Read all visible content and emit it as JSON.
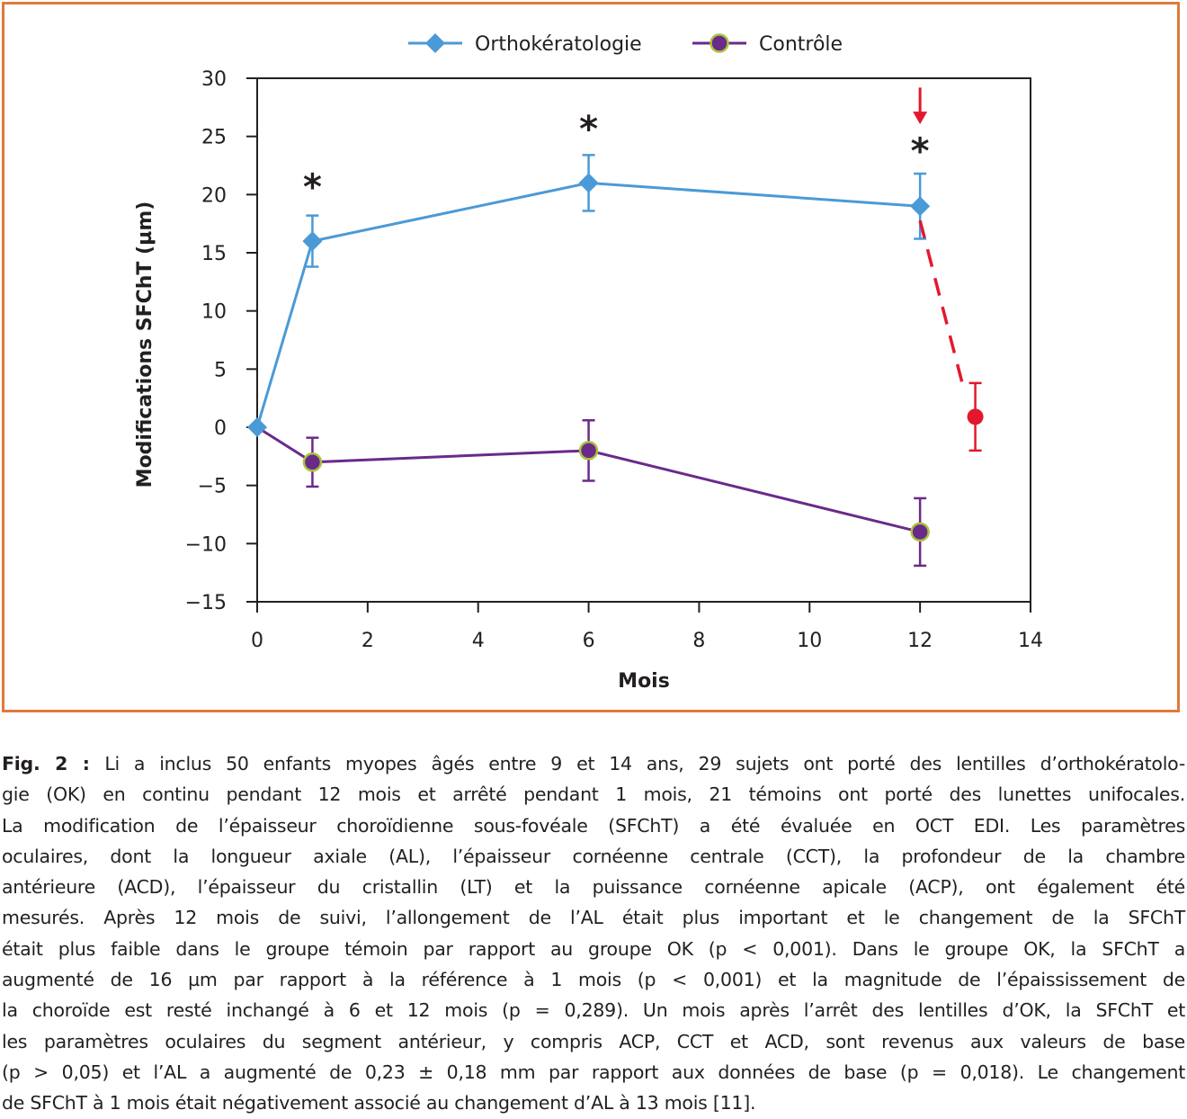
{
  "chart_data": {
    "type": "line",
    "xlabel": "Mois",
    "ylabel": "Modifications SFChT (µm)",
    "xlim": [
      0,
      14
    ],
    "ylim": [
      -15,
      30
    ],
    "x_ticks": [
      "0",
      "2",
      "4",
      "6",
      "8",
      "10",
      "12",
      "14"
    ],
    "y_ticks": [
      "30",
      "25",
      "20",
      "15",
      "10",
      "5",
      "0",
      "−5",
      "−10",
      "−15"
    ],
    "grid": false,
    "legend": "top",
    "series": [
      {
        "name": "Orthokératologie",
        "color": "#4a9ad7",
        "marker": "diamond",
        "x": [
          0,
          1,
          6,
          12
        ],
        "y": [
          0,
          16,
          21,
          19
        ],
        "error": [
          0,
          2.2,
          2.4,
          2.8
        ]
      },
      {
        "name": "Contrôle",
        "color": "#6a2a8a",
        "marker": "circle",
        "marker_edge": "#a8c43a",
        "x": [
          0,
          1,
          6,
          12
        ],
        "y": [
          0,
          -3,
          -2,
          -9
        ],
        "error": [
          0,
          2.1,
          2.6,
          2.9
        ]
      }
    ],
    "discontinuation": {
      "color": "#e3182d",
      "from": [
        12,
        19
      ],
      "x": 13,
      "y": 0.9,
      "error": 2.9
    },
    "annotations": [
      {
        "text": "*",
        "x": 1,
        "y": 21.3
      },
      {
        "text": "*",
        "x": 6,
        "y": 26.3
      },
      {
        "text": "*",
        "x": 12,
        "y": 24.4
      }
    ],
    "arrow": {
      "x": 12,
      "y_from": 29.2,
      "y_to": 26.2,
      "color": "#e3182d"
    }
  },
  "caption": {
    "label": "Fig. 2 :",
    "lines": [
      "Li a inclus 50 enfants myopes âgés entre 9 et 14 ans, 29 sujets ont porté des lentilles d’orthokératolo-",
      "gie (OK) en continu pendant 12 mois et arrêté pendant 1 mois, 21 témoins ont porté des lunettes unifocales.",
      "La modification de l’épaisseur choroïdienne sous-fovéale (SFChT) a été évaluée en OCT EDI. Les paramètres",
      "oculaires, dont la longueur axiale (AL), l’épaisseur cornéenne centrale (CCT), la profondeur de la chambre",
      "antérieure (ACD), l’épaisseur du cristallin (LT) et la puissance cornéenne apicale (ACP), ont également été",
      "mesurés. Après 12 mois de suivi, l’allongement de l’AL était plus important et le changement de la SFChT",
      "était plus faible dans le groupe témoin par rapport au groupe OK (p < 0,001). Dans le groupe OK, la SFChT a",
      "augmenté de 16 µm par rapport à la référence à 1 mois (p < 0,001) et la magnitude de l’épaississement de",
      "la choroïde est resté inchangé à 6 et 12 mois (p = 0,289). Un mois après l’arrêt des lentilles d’OK, la SFChT et",
      "les paramètres oculaires du segment antérieur, y compris ACP, CCT et ACD, sont revenus aux valeurs de base",
      "(p > 0,05) et l’AL a augmenté de 0,23 ± 0,18 mm par rapport aux données de base (p = 0,018). Le changement",
      "de SFChT à 1 mois était négativement associé au changement d’AL à 13 mois [11]."
    ]
  }
}
